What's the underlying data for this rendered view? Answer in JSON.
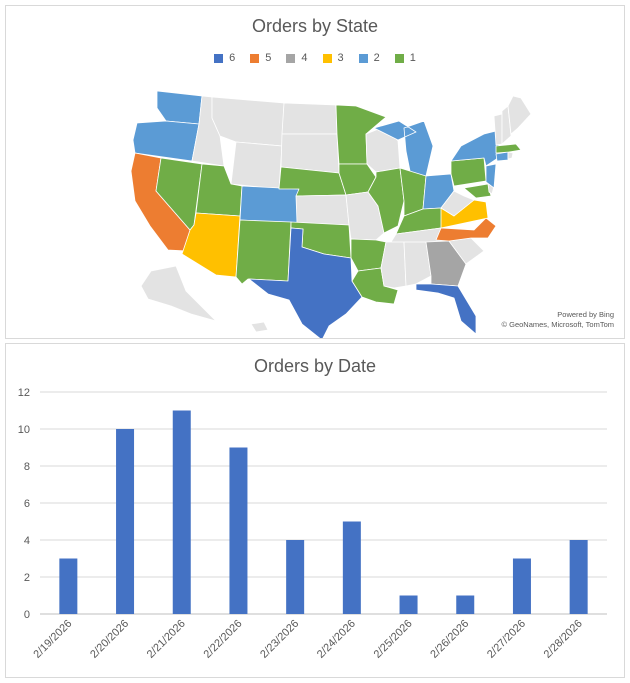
{
  "chart_data": [
    {
      "type": "map",
      "title": "Orders by State",
      "legend": [
        {
          "label": "6",
          "color": "#4472c4"
        },
        {
          "label": "5",
          "color": "#ed7d31"
        },
        {
          "label": "4",
          "color": "#a5a5a5"
        },
        {
          "label": "3",
          "color": "#ffc000"
        },
        {
          "label": "2",
          "color": "#5b9bd5"
        },
        {
          "label": "1",
          "color": "#70ad47"
        }
      ],
      "no_data_color": "#e3e3e3",
      "states": {
        "TX": 6,
        "FL": 6,
        "CA": 5,
        "NC": 5,
        "GA": 4,
        "AZ": 3,
        "VA": 3,
        "WA": 2,
        "OR": 2,
        "CO": 2,
        "MI": 2,
        "OH": 2,
        "NY": 2,
        "NJ": 2,
        "CT": 2,
        "NV": 1,
        "UT": 1,
        "NM": 1,
        "NE": 1,
        "OK": 1,
        "MN": 1,
        "IA": 1,
        "IL": 1,
        "IN": 1,
        "KY": 1,
        "AR": 1,
        "LA": 1,
        "PA": 1,
        "MD": 1,
        "MA": 1
      },
      "attribution": {
        "line1": "Powered by Bing",
        "line2": "© GeoNames, Microsoft, TomTom"
      }
    },
    {
      "type": "bar",
      "title": "Orders by Date",
      "categories": [
        "2/19/2026",
        "2/20/2026",
        "2/21/2026",
        "2/22/2026",
        "2/23/2026",
        "2/24/2026",
        "2/25/2026",
        "2/26/2026",
        "2/27/2026",
        "2/28/2026"
      ],
      "values": [
        3,
        10,
        11,
        9,
        4,
        5,
        1,
        1,
        3,
        4
      ],
      "xlabel": "",
      "ylabel": "",
      "ylim": [
        0,
        12
      ],
      "yticks": [
        0,
        2,
        4,
        6,
        8,
        10,
        12
      ],
      "grid": true,
      "bar_color": "#4472c4"
    }
  ]
}
